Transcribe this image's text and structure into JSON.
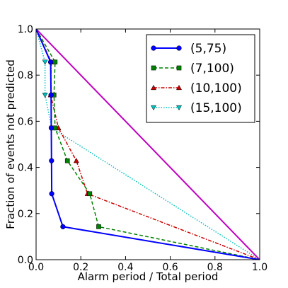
{
  "chart_data": {
    "type": "line",
    "xlabel": "Alarm period / Total period",
    "ylabel": "Fraction of events not predicted",
    "xlim": [
      0.0,
      1.0
    ],
    "ylim": [
      0.0,
      1.0
    ],
    "xticks": [
      0.0,
      0.2,
      0.4,
      0.6,
      0.8,
      1.0
    ],
    "yticks": [
      0.0,
      0.2,
      0.4,
      0.6,
      0.8,
      1.0
    ],
    "xtick_labels": [
      "0.0",
      "0.2",
      "0.4",
      "0.6",
      "0.8",
      "1.0"
    ],
    "ytick_labels": [
      "0.0",
      "0.2",
      "0.4",
      "0.6",
      "0.8",
      "1.0"
    ],
    "grid": false,
    "legend_position": "top-right",
    "reference_line": {
      "x": [
        0.0,
        1.0
      ],
      "y": [
        1.0,
        0.0
      ],
      "color": "#bf00bf"
    },
    "series": [
      {
        "name": "(5,75)",
        "color": "#0000ff",
        "line_style": "solid",
        "marker": "circle",
        "x": [
          0.0,
          0.065,
          0.067,
          0.068,
          0.069,
          0.07,
          0.12,
          1.0
        ],
        "y": [
          1.0,
          0.857,
          0.714,
          0.571,
          0.429,
          0.286,
          0.143,
          0.0
        ]
      },
      {
        "name": "(7,100)",
        "color": "#008000",
        "line_style": "dashed",
        "marker": "square",
        "x": [
          0.0,
          0.085,
          0.08,
          0.085,
          0.14,
          0.24,
          0.28,
          1.0
        ],
        "y": [
          1.0,
          0.857,
          0.714,
          0.571,
          0.429,
          0.286,
          0.143,
          0.0
        ]
      },
      {
        "name": "(10,100)",
        "color": "#cc0000",
        "line_style": "dash-dot",
        "marker": "triangle-up",
        "x": [
          0.0,
          0.068,
          0.065,
          0.1,
          0.18,
          0.23,
          1.0
        ],
        "y": [
          1.0,
          0.857,
          0.714,
          0.571,
          0.429,
          0.286,
          0.0
        ]
      },
      {
        "name": "(15,100)",
        "color": "#00bfbf",
        "line_style": "dotted",
        "marker": "triangle-down",
        "x": [
          0.0,
          0.04,
          0.04,
          0.07,
          1.0
        ],
        "y": [
          1.0,
          0.857,
          0.714,
          0.571,
          0.0
        ]
      }
    ]
  }
}
